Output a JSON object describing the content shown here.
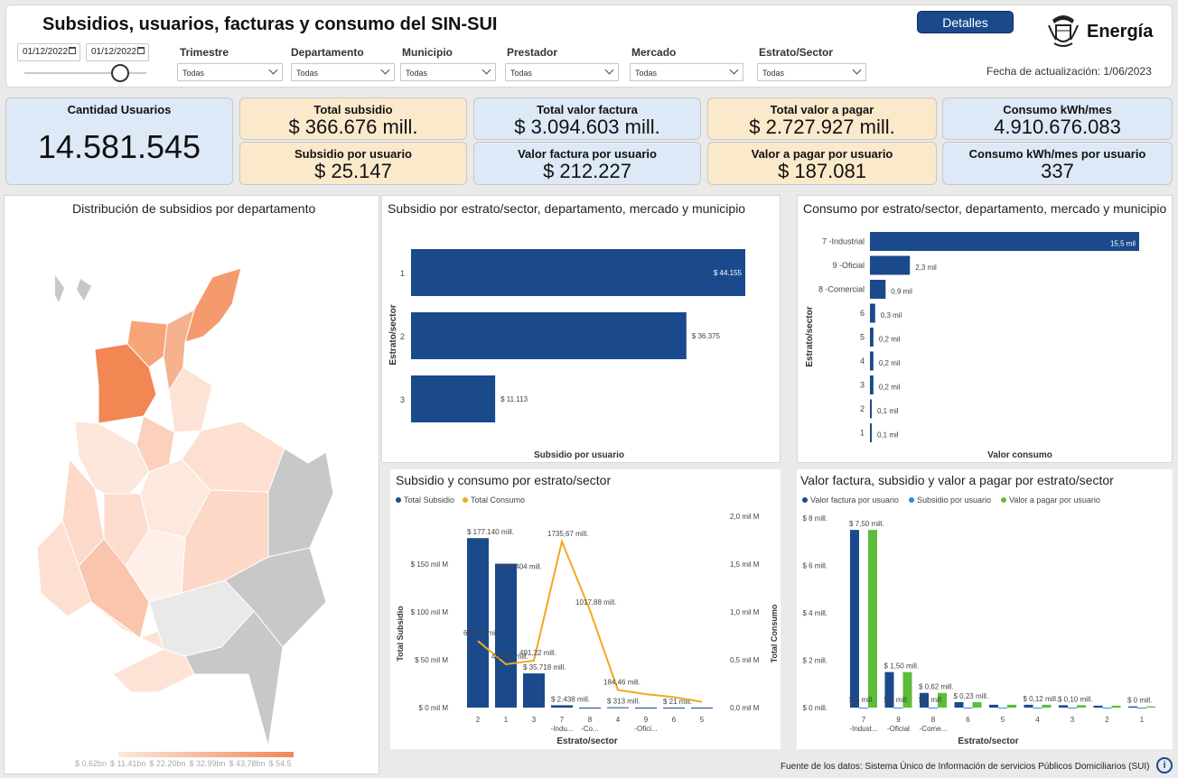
{
  "header": {
    "title": "Subsidios, usuarios, facturas y consumo del SIN-SUI",
    "details_button": "Detalles",
    "brand": "Energía",
    "updated": "Fecha de actualización: 1/06/2023",
    "date_from": "01/12/2022",
    "date_to": "01/12/2022"
  },
  "filters": [
    {
      "label": "Trimestre",
      "value": "Todas"
    },
    {
      "label": "Departamento",
      "value": "Todas"
    },
    {
      "label": "Municipio",
      "value": "Todas"
    },
    {
      "label": "Prestador",
      "value": "Todas"
    },
    {
      "label": "Mercado",
      "value": "Todas"
    },
    {
      "label": "Estrato/Sector",
      "value": "Todas"
    }
  ],
  "kpis": {
    "usuarios": {
      "label": "Cantidad Usuarios",
      "value": "14.581.545"
    },
    "total_subsidio": {
      "label": "Total subsidio",
      "value": "$ 366.676 mill."
    },
    "subsidio_usuario": {
      "label": "Subsidio por usuario",
      "value": "$ 25.147"
    },
    "total_factura": {
      "label": "Total valor factura",
      "value": "$ 3.094.603 mill."
    },
    "factura_usuario": {
      "label": "Valor factura por usuario",
      "value": "$ 212.227"
    },
    "total_pagar": {
      "label": "Total valor a pagar",
      "value": "$ 2.727.927 mill."
    },
    "pagar_usuario": {
      "label": "Valor a pagar por usuario",
      "value": "$ 187.081"
    },
    "consumo": {
      "label": "Consumo kWh/mes",
      "value": "4.910.676.083"
    },
    "consumo_usuario": {
      "label": "Consumo kWh/mes por usuario",
      "value": "337"
    }
  },
  "map": {
    "title": "Distribución de subsidios por departamento",
    "legend": [
      "$ 0.62bn",
      "$ 11.41bn",
      "$ 22.20bn",
      "$ 32.99bn",
      "$ 43.78bn",
      "$ 54.5"
    ]
  },
  "footer": {
    "source": "Fuente de los datos: Sistema Único de Información de servicios Públicos Domiciliarios (SUI)"
  },
  "colors": {
    "navy": "#1a4a8c",
    "orange": "#f5a623",
    "lightblue": "#2b8be8",
    "green": "#5bbd3a"
  },
  "chart_data": [
    {
      "type": "bar",
      "title": "Subsidio por estrato/sector, departamento, mercado y municipio",
      "xlabel": "Subsidio por usuario",
      "ylabel": "Estrato/sector",
      "categories": [
        "1",
        "2",
        "3"
      ],
      "values": [
        44155,
        36375,
        11113
      ],
      "labels": [
        "$ 44.155",
        "$ 36.375",
        "$ 11.113"
      ],
      "xlim": [
        0,
        44155
      ]
    },
    {
      "type": "bar",
      "title": "Consumo por estrato/sector, departamento, mercado y municipio",
      "xlabel": "Valor consumo",
      "ylabel": "Estrato/sector",
      "categories": [
        "7 -Industrial",
        "9 -Oficial",
        "8 -Comercial",
        "6",
        "5",
        "4",
        "3",
        "2",
        "1"
      ],
      "values": [
        15.5,
        2.3,
        0.9,
        0.3,
        0.2,
        0.2,
        0.2,
        0.1,
        0.1
      ],
      "labels": [
        "15,5 mil",
        "2,3 mil",
        "0,9 mil",
        "0,3 mil",
        "0,2 mil",
        "0,2 mil",
        "0,2 mil",
        "0,1 mil",
        "0,1 mil"
      ]
    },
    {
      "type": "bar",
      "title": "Subsidio y consumo por estrato/sector",
      "xlabel": "Estrato/sector",
      "ylabel": "Total Subsidio",
      "y2label": "Total Consumo",
      "legend": [
        "Total Subsidio",
        "Total Consumo"
      ],
      "categories": [
        "2",
        "1",
        "3",
        "7 -Indu...",
        "8 -Co...",
        "4",
        "9 -Ofici...",
        "6",
        "5"
      ],
      "series": [
        {
          "name": "Total Subsidio",
          "values": [
            177.14,
            150.404,
            35.718,
            2.438,
            0,
            0.313,
            0,
            0.021,
            0
          ],
          "labels": [
            "$ 177.140 mill.",
            "$ 150.404 mill.",
            "$ 35.718 mill.",
            "$ 2.438 mill.",
            "",
            "$ 313 mill.",
            "",
            "$ 21 mill.",
            ""
          ]
        },
        {
          "name": "Total Consumo",
          "values": [
            696.41,
            452.88,
            491.22,
            1735.67,
            1017.88,
            184.46,
            140,
            110,
            60
          ],
          "labels": [
            "696,41 mill.",
            "452,88 mill.",
            "491,22 mill.",
            "1735,67 mill.",
            "1017,88 mill.",
            "184,46 mill.",
            "",
            "",
            ""
          ]
        }
      ],
      "yticks": [
        "$ 0 mil M",
        "$ 50 mil M",
        "$ 100 mil M",
        "$ 150 mil M"
      ],
      "y2ticks": [
        "0,0 mil M",
        "0,5 mil M",
        "1,0 mil M",
        "1,5 mil M",
        "2,0 mil M"
      ],
      "ylim": [
        0,
        200
      ],
      "y2lim": [
        0,
        2000
      ]
    },
    {
      "type": "bar",
      "title": "Valor factura, subsidio y valor a pagar por estrato/sector",
      "xlabel": "Estrato/sector",
      "legend": [
        "Valor factura por usuario",
        "Subsidio por usuario",
        "Valor a pagar por usuario"
      ],
      "categories": [
        "7 -Indust...",
        "9 -Oficial",
        "8 -Come...",
        "6",
        "5",
        "4",
        "3",
        "2",
        "1"
      ],
      "series": [
        {
          "name": "Valor factura por usuario",
          "values": [
            7.5,
            1.5,
            0.62,
            0.23,
            0.12,
            0.12,
            0.1,
            0.08,
            0.05
          ]
        },
        {
          "name": "Subsidio por usuario",
          "values": [
            0,
            0,
            0,
            0,
            0,
            0,
            0,
            0,
            0
          ]
        },
        {
          "name": "Valor a pagar por usuario",
          "values": [
            7.5,
            1.5,
            0.62,
            0.23,
            0.12,
            0.12,
            0.1,
            0.08,
            0.05
          ]
        }
      ],
      "labels": [
        "$ 7,50 mill.",
        "$ 1,50 mill.",
        "$ 0,62 mill.",
        "$ 0,23 mill.",
        "",
        "$ 0,12 mill.",
        "$ 0,10 mill.",
        "",
        "$ 0 mill."
      ],
      "zero_labels": [
        "$ 0 mill.",
        "$ 0 mill.",
        "$ 0 mill."
      ],
      "yticks": [
        "$ 0 mill.",
        "$ 2 mill.",
        "$ 4 mill.",
        "$ 6 mill.",
        "$ 8 mill."
      ],
      "ylim": [
        0,
        8
      ]
    }
  ]
}
